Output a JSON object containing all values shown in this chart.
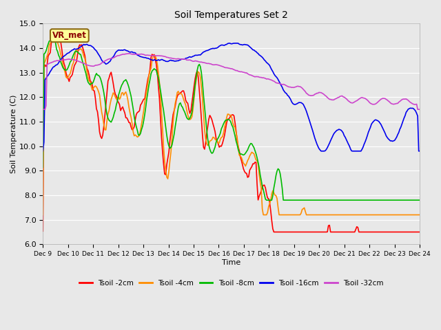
{
  "title": "Soil Temperatures Set 2",
  "xlabel": "Time",
  "ylabel": "Soil Temperature (C)",
  "ylim": [
    6.0,
    15.0
  ],
  "yticks": [
    6.0,
    7.0,
    8.0,
    9.0,
    10.0,
    11.0,
    12.0,
    13.0,
    14.0,
    15.0
  ],
  "xtick_labels": [
    "Dec 9",
    "Dec 10",
    "Dec 11",
    "Dec 12",
    "Dec 13",
    "Dec 14",
    "Dec 15",
    "Dec 16",
    "Dec 17",
    "Dec 18",
    "Dec 19",
    "Dec 20",
    "Dec 21",
    "Dec 22",
    "Dec 23",
    "Dec 24"
  ],
  "annotation_label": "VR_met",
  "annotation_color": "#8B0000",
  "annotation_bg": "#FFFF99",
  "annotation_edge": "#8B6914",
  "colors": {
    "Tsoil -2cm": "#FF0000",
    "Tsoil -4cm": "#FF8C00",
    "Tsoil -8cm": "#00BB00",
    "Tsoil -16cm": "#0000EE",
    "Tsoil -32cm": "#CC44CC"
  },
  "fig_bg": "#E8E8E8",
  "plot_bg": "#E8E8E8",
  "grid_color": "#FFFFFF",
  "linewidth": 1.2
}
